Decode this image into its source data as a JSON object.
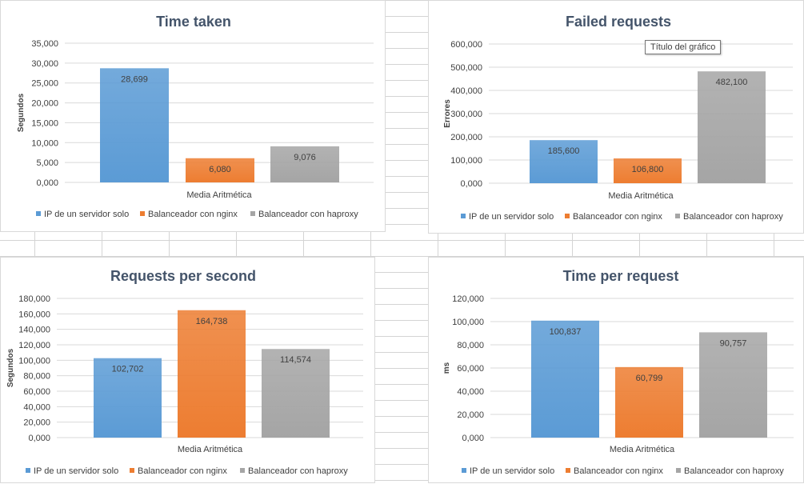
{
  "colors": {
    "series1": "#5b9bd5",
    "series2": "#ed7d31",
    "series3": "#a5a5a5",
    "gridline": "#d9d9d9",
    "title": "#44546a"
  },
  "tooltip": "Título del gráfico",
  "chart_data": [
    {
      "type": "bar",
      "title": "Time taken",
      "xlabel": "",
      "ylabel": "Segundos",
      "categories": [
        "Media Aritmética"
      ],
      "ylim": [
        0,
        35000
      ],
      "ystep": 5000,
      "yticks": [
        "0,000",
        "5,000",
        "10,000",
        "15,000",
        "20,000",
        "25,000",
        "30,000",
        "35,000"
      ],
      "grid": true,
      "legend_position": "bottom",
      "series": [
        {
          "name": "IP de un servidor solo",
          "values": [
            28699
          ],
          "label": "28,699"
        },
        {
          "name": "Balanceador con nginx",
          "values": [
            6080
          ],
          "label": "6,080"
        },
        {
          "name": "Balanceador con haproxy",
          "values": [
            9076
          ],
          "label": "9,076"
        }
      ]
    },
    {
      "type": "bar",
      "title": "Failed requests",
      "xlabel": "",
      "ylabel": "Errores",
      "categories": [
        "Media Aritmética"
      ],
      "ylim": [
        0,
        600000
      ],
      "ystep": 100000,
      "yticks": [
        "0,000",
        "100,000",
        "200,000",
        "300,000",
        "400,000",
        "500,000",
        "600,000"
      ],
      "grid": true,
      "legend_position": "bottom",
      "series": [
        {
          "name": "IP de un servidor solo",
          "values": [
            185600
          ],
          "label": "185,600"
        },
        {
          "name": "Balanceador con nginx",
          "values": [
            106800
          ],
          "label": "106,800"
        },
        {
          "name": "Balanceador con haproxy",
          "values": [
            482100
          ],
          "label": "482,100"
        }
      ]
    },
    {
      "type": "bar",
      "title": "Requests per second",
      "xlabel": "",
      "ylabel": "Segundos",
      "categories": [
        "Media Aritmética"
      ],
      "ylim": [
        0,
        180000
      ],
      "ystep": 20000,
      "yticks": [
        "0,000",
        "20,000",
        "40,000",
        "60,000",
        "80,000",
        "100,000",
        "120,000",
        "140,000",
        "160,000",
        "180,000"
      ],
      "grid": true,
      "legend_position": "bottom",
      "series": [
        {
          "name": "IP de un servidor solo",
          "values": [
            102702
          ],
          "label": "102,702"
        },
        {
          "name": "Balanceador con nginx",
          "values": [
            164738
          ],
          "label": "164,738"
        },
        {
          "name": "Balanceador con haproxy",
          "values": [
            114574
          ],
          "label": "114,574"
        }
      ]
    },
    {
      "type": "bar",
      "title": "Time per request",
      "xlabel": "",
      "ylabel": "ms",
      "categories": [
        "Media Aritmética"
      ],
      "ylim": [
        0,
        120000
      ],
      "ystep": 20000,
      "yticks": [
        "0,000",
        "20,000",
        "40,000",
        "60,000",
        "80,000",
        "100,000",
        "120,000"
      ],
      "grid": true,
      "legend_position": "bottom",
      "series": [
        {
          "name": "IP de un servidor solo",
          "values": [
            100837
          ],
          "label": "100,837"
        },
        {
          "name": "Balanceador con nginx",
          "values": [
            60799
          ],
          "label": "60,799"
        },
        {
          "name": "Balanceador con haproxy",
          "values": [
            90757
          ],
          "label": "90,757"
        }
      ]
    }
  ]
}
